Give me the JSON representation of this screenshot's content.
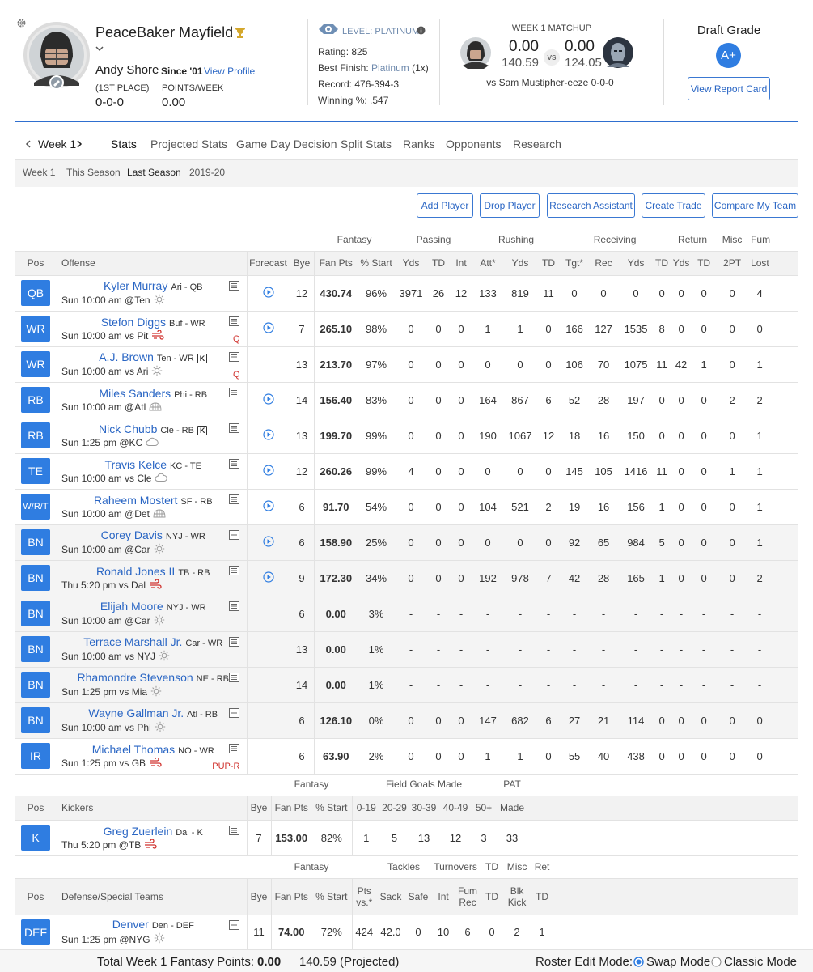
{
  "header": {
    "team_name": "PeaceBaker Mayfield",
    "owner": "Andy Shore",
    "since": "Since '01",
    "view_profile": "View Profile",
    "place_label": "(1ST PLACE)",
    "record": "0-0-0",
    "points_label": "POINTS/WEEK",
    "points": "0.00"
  },
  "league": {
    "level": "LEVEL: PLATINUM",
    "rating_label": "Rating:",
    "rating": "825",
    "best_label": "Best Finish:",
    "best": "Platinum",
    "best_count": "(1x)",
    "record_label": "Record:",
    "record": "476-394-3",
    "win_label": "Winning %:",
    "win": ".547"
  },
  "matchup": {
    "title": "WEEK 1 MATCHUP",
    "my_score": "0.00",
    "my_proj": "140.59",
    "vs": "vs",
    "opp_score": "0.00",
    "opp_proj": "124.05",
    "opponent": "vs Sam Mustipher-eeze 0-0-0"
  },
  "draft": {
    "title": "Draft Grade",
    "grade": "A+",
    "button": "View Report Card"
  },
  "nav": {
    "week": "Week 1",
    "tabs": [
      "Stats",
      "Projected Stats",
      "Game Day Decision",
      "Split Stats",
      "Ranks",
      "Opponents",
      "Research"
    ],
    "subtabs": [
      "Week 1",
      "This Season",
      "Last Season",
      "2019-20"
    ]
  },
  "buttons": [
    "Add Player",
    "Drop Player",
    "Research Assistant",
    "Create Trade",
    "Compare My Team"
  ],
  "offense": {
    "groups": [
      "Fantasy",
      "Passing",
      "Rushing",
      "Receiving",
      "Return",
      "Misc",
      "Fum"
    ],
    "columns": [
      "Pos",
      "Offense",
      "Forecast",
      "Bye",
      "Fan Pts",
      "% Start",
      "Yds",
      "TD",
      "Int",
      "Att*",
      "Yds",
      "TD",
      "Tgt*",
      "Rec",
      "Yds",
      "TD",
      "Yds",
      "TD",
      "2PT",
      "Lost"
    ],
    "rows": [
      {
        "pos": "QB",
        "name": "Kyler Murray",
        "team_pos": "Ari - QB",
        "game": "Sun 10:00 am @Ten",
        "bye": "12",
        "fan_pts": "430.74",
        "start": "96%",
        "stats": [
          "3971",
          "26",
          "12",
          "133",
          "819",
          "11",
          "0",
          "0",
          "0",
          "0",
          "0",
          "0",
          "0",
          "4"
        ]
      },
      {
        "pos": "WR",
        "name": "Stefon Diggs",
        "team_pos": "Buf - WR",
        "game": "Sun 10:00 am vs Pit",
        "status": "Q",
        "bye": "7",
        "fan_pts": "265.10",
        "start": "98%",
        "stats": [
          "0",
          "0",
          "0",
          "1",
          "1",
          "0",
          "166",
          "127",
          "1535",
          "8",
          "0",
          "0",
          "0",
          "0"
        ]
      },
      {
        "pos": "WR",
        "name": "A.J. Brown",
        "team_pos": "Ten - WR",
        "badge": "K",
        "game": "Sun 10:00 am vs Ari",
        "status": "Q",
        "bye": "13",
        "fan_pts": "213.70",
        "start": "97%",
        "stats": [
          "0",
          "0",
          "0",
          "0",
          "0",
          "0",
          "106",
          "70",
          "1075",
          "11",
          "42",
          "1",
          "0",
          "1"
        ]
      },
      {
        "pos": "RB",
        "name": "Miles Sanders",
        "team_pos": "Phi - RB",
        "game": "Sun 10:00 am @Atl",
        "bye": "14",
        "fan_pts": "156.40",
        "start": "83%",
        "stats": [
          "0",
          "0",
          "0",
          "164",
          "867",
          "6",
          "52",
          "28",
          "197",
          "0",
          "0",
          "0",
          "2",
          "2"
        ]
      },
      {
        "pos": "RB",
        "name": "Nick Chubb",
        "team_pos": "Cle - RB",
        "badge": "K",
        "game": "Sun 1:25 pm @KC",
        "bye": "13",
        "fan_pts": "199.70",
        "start": "99%",
        "stats": [
          "0",
          "0",
          "0",
          "190",
          "1067",
          "12",
          "18",
          "16",
          "150",
          "0",
          "0",
          "0",
          "0",
          "1"
        ]
      },
      {
        "pos": "TE",
        "name": "Travis Kelce",
        "team_pos": "KC - TE",
        "game": "Sun 10:00 am vs Cle",
        "bye": "12",
        "fan_pts": "260.26",
        "start": "99%",
        "stats": [
          "4",
          "0",
          "0",
          "0",
          "0",
          "0",
          "145",
          "105",
          "1416",
          "11",
          "0",
          "0",
          "1",
          "1"
        ]
      },
      {
        "pos": "W/R/T",
        "name": "Raheem Mostert",
        "team_pos": "SF - RB",
        "game": "Sun 10:00 am @Det",
        "bye": "6",
        "fan_pts": "91.70",
        "start": "54%",
        "stats": [
          "0",
          "0",
          "0",
          "104",
          "521",
          "2",
          "19",
          "16",
          "156",
          "1",
          "0",
          "0",
          "0",
          "1"
        ]
      },
      {
        "pos": "BN",
        "name": "Corey Davis",
        "team_pos": "NYJ - WR",
        "game": "Sun 10:00 am @Car",
        "bye": "6",
        "fan_pts": "158.90",
        "start": "25%",
        "stats": [
          "0",
          "0",
          "0",
          "0",
          "0",
          "0",
          "92",
          "65",
          "984",
          "5",
          "0",
          "0",
          "0",
          "1"
        ]
      },
      {
        "pos": "BN",
        "name": "Ronald Jones II",
        "team_pos": "TB - RB",
        "game": "Thu 5:20 pm vs Dal",
        "bye": "9",
        "fan_pts": "172.30",
        "start": "34%",
        "stats": [
          "0",
          "0",
          "0",
          "192",
          "978",
          "7",
          "42",
          "28",
          "165",
          "1",
          "0",
          "0",
          "0",
          "2"
        ]
      },
      {
        "pos": "BN",
        "name": "Elijah Moore",
        "team_pos": "NYJ - WR",
        "game": "Sun 10:00 am @Car",
        "bye": "6",
        "fan_pts": "0.00",
        "start": "3%",
        "stats": [
          "-",
          "-",
          "-",
          "-",
          "-",
          "-",
          "-",
          "-",
          "-",
          "-",
          "-",
          "-",
          "-",
          "-"
        ]
      },
      {
        "pos": "BN",
        "name": "Terrace Marshall Jr.",
        "team_pos": "Car - WR",
        "game": "Sun 10:00 am vs NYJ",
        "bye": "13",
        "fan_pts": "0.00",
        "start": "1%",
        "stats": [
          "-",
          "-",
          "-",
          "-",
          "-",
          "-",
          "-",
          "-",
          "-",
          "-",
          "-",
          "-",
          "-",
          "-"
        ]
      },
      {
        "pos": "BN",
        "name": "Rhamondre Stevenson",
        "team_pos": "NE - RB",
        "game": "Sun 1:25 pm vs Mia",
        "bye": "14",
        "fan_pts": "0.00",
        "start": "1%",
        "stats": [
          "-",
          "-",
          "-",
          "-",
          "-",
          "-",
          "-",
          "-",
          "-",
          "-",
          "-",
          "-",
          "-",
          "-"
        ]
      },
      {
        "pos": "BN",
        "name": "Wayne Gallman Jr.",
        "team_pos": "Atl - RB",
        "game": "Sun 10:00 am vs Phi",
        "bye": "6",
        "fan_pts": "126.10",
        "start": "0%",
        "stats": [
          "0",
          "0",
          "0",
          "147",
          "682",
          "6",
          "27",
          "21",
          "114",
          "0",
          "0",
          "0",
          "0",
          "0"
        ]
      },
      {
        "pos": "IR",
        "name": "Michael Thomas",
        "team_pos": "NO - WR",
        "game": "Sun 1:25 pm vs GB",
        "status": "PUP-R",
        "bye": "6",
        "fan_pts": "63.90",
        "start": "2%",
        "stats": [
          "0",
          "0",
          "0",
          "1",
          "1",
          "0",
          "55",
          "40",
          "438",
          "0",
          "0",
          "0",
          "0",
          "0"
        ]
      }
    ]
  },
  "kickers": {
    "groups": [
      "Fantasy",
      "Field Goals Made",
      "PAT"
    ],
    "columns": [
      "Pos",
      "Kickers",
      "Bye",
      "Fan Pts",
      "% Start",
      "0-19",
      "20-29",
      "30-39",
      "40-49",
      "50+",
      "Made"
    ],
    "rows": [
      {
        "pos": "K",
        "name": "Greg Zuerlein",
        "team_pos": "Dal - K",
        "game": "Thu 5:20 pm @TB",
        "bye": "7",
        "fan_pts": "153.00",
        "start": "82%",
        "stats": [
          "1",
          "5",
          "13",
          "12",
          "3",
          "33"
        ]
      }
    ]
  },
  "defense": {
    "groups": [
      "Fantasy",
      "Tackles",
      "Turnovers",
      "TD",
      "Misc",
      "Ret"
    ],
    "columns": [
      "Pos",
      "Defense/Special Teams",
      "Bye",
      "Fan Pts",
      "% Start",
      "Pts vs.*",
      "Sack",
      "Safe",
      "Int",
      "Fum Rec",
      "TD",
      "Blk Kick",
      "TD"
    ],
    "rows": [
      {
        "pos": "DEF",
        "name": "Denver",
        "team_pos": "Den - DEF",
        "game": "Sun 1:25 pm @NYG",
        "bye": "11",
        "fan_pts": "74.00",
        "start": "72%",
        "stats": [
          "424",
          "42.0",
          "0",
          "10",
          "6",
          "0",
          "2",
          "1"
        ]
      }
    ]
  },
  "footer": {
    "total_label": "Total Week 1 Fantasy Points:",
    "total": "0.00",
    "projected": "140.59 (Projected)",
    "mode_label": "Roster Edit Mode:",
    "modes": [
      "Swap Mode",
      "Classic Mode"
    ]
  }
}
